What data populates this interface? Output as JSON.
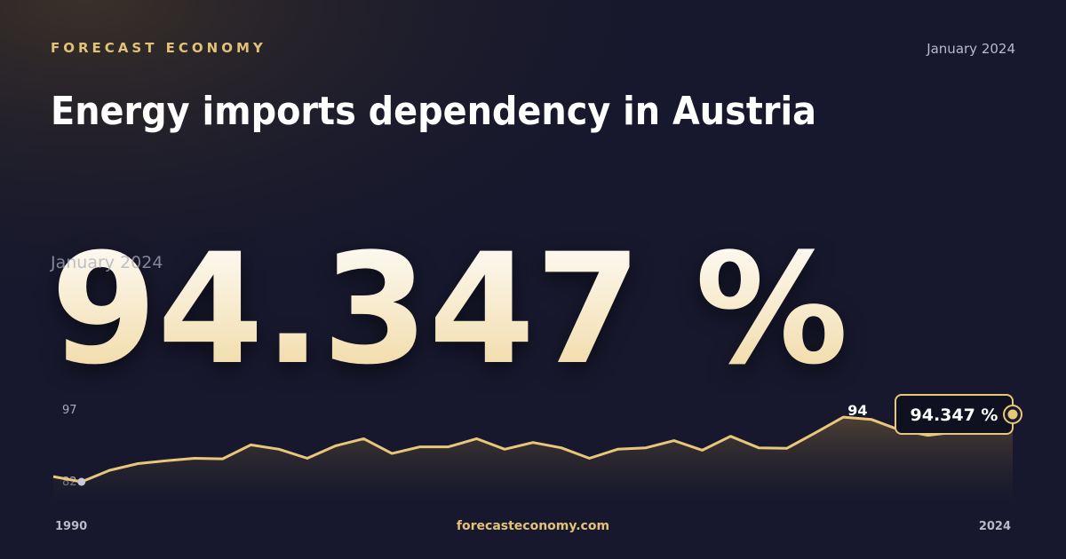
{
  "brand": "FORECAST ECONOMY",
  "date": "January 2024",
  "title": "Energy imports dependency in Austria",
  "value": 94.347,
  "value_label": "94.347 %",
  "footer": "forecasteconomy.com",
  "chart_data": {
    "type": "line",
    "x": [
      1990,
      1991,
      1992,
      1993,
      1994,
      1995,
      1996,
      1997,
      1998,
      1999,
      2000,
      2001,
      2002,
      2003,
      2004,
      2005,
      2006,
      2007,
      2008,
      2009,
      2010,
      2011,
      2012,
      2013,
      2014,
      2015,
      2016,
      2017,
      2018,
      2019,
      2020,
      2021,
      2022,
      2023,
      2024
    ],
    "series": [
      {
        "color": "#e8c77a",
        "values": [
          83.1,
          82.0,
          84.4,
          85.8,
          86.4,
          86.9,
          86.8,
          89.7,
          88.8,
          86.9,
          89.5,
          91.0,
          87.9,
          89.3,
          89.3,
          91.0,
          88.8,
          90.2,
          89.1,
          86.9,
          88.8,
          89.1,
          90.6,
          88.6,
          91.5,
          89.1,
          89.0,
          92.2,
          95.5,
          95.0,
          92.8,
          91.7,
          92.4,
          93.0,
          94.347
        ]
      }
    ],
    "annotation": "94",
    "xlim": [
      1990,
      2024
    ],
    "xticks": [
      1990,
      2024
    ],
    "ylim": [
      82,
      97
    ],
    "yticks": [
      82,
      97
    ]
  }
}
